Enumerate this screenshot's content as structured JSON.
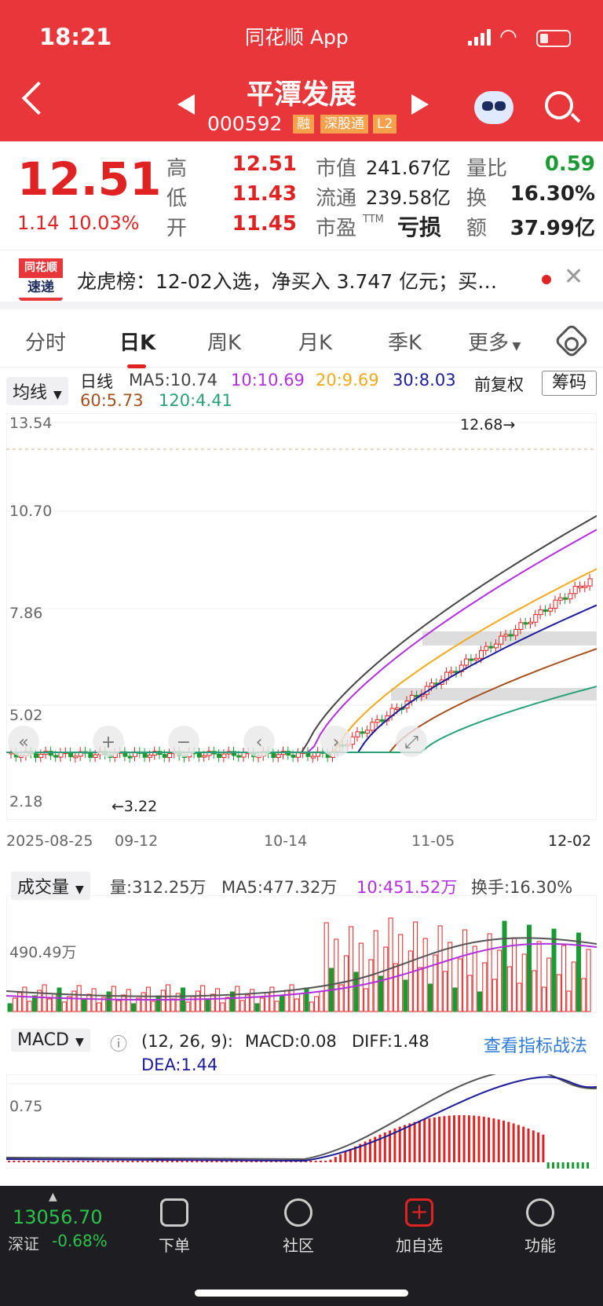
{
  "status_bar": {
    "time": "18:21",
    "app": "同花顺 App"
  },
  "header": {
    "stock_name": "平潭发展",
    "code": "000592",
    "tags": [
      "融",
      "深股通",
      "L2"
    ]
  },
  "quote": {
    "price": "12.51",
    "change": "1.14",
    "change_pct": "10.03%",
    "high_label": "高",
    "high": "12.51",
    "low_label": "低",
    "low": "11.43",
    "open_label": "开",
    "open": "11.45",
    "mktcap_label": "市值",
    "mktcap": "241.67亿",
    "float_label": "流通",
    "float": "239.58亿",
    "pe_label": "市盈",
    "pe_sup": "TTM",
    "pe": "亏损",
    "vr_label": "量比",
    "vr": "0.59",
    "turn_label": "换",
    "turn": "16.30%",
    "amt_label": "额",
    "amt": "37.99亿"
  },
  "news": {
    "logo_top": "同花顺",
    "logo_bottom": "速递",
    "text": "龙虎榜：12-02入选，净买入 3.747 亿元；买…"
  },
  "tabs": [
    "分时",
    "日K",
    "周K",
    "月K",
    "季K",
    "更多"
  ],
  "active_tab": 1,
  "kline_legend": {
    "indicator": "均线",
    "period": "日线",
    "ma5": "MA5:10.74",
    "ma10": "10:10.69",
    "ma20": "20:9.69",
    "ma30": "30:8.03",
    "ma60": "60:5.73",
    "ma120": "120:4.41",
    "adjust": "前复权",
    "chips": "筹码"
  },
  "kline_axis": {
    "y_ticks": [
      "13.54",
      "10.70",
      "7.86",
      "5.02",
      "2.18"
    ],
    "x_ticks": [
      "2025-08-25",
      "09-12",
      "10-14",
      "11-05",
      "12-02"
    ],
    "max_label": "12.68→",
    "min_label": "←3.22"
  },
  "volume_legend": {
    "indicator": "成交量",
    "vol": "量:312.25万",
    "ma5": "MA5:477.32万",
    "ma10": "10:451.52万",
    "turnover": "换手:16.30%",
    "y_tick": "490.49万"
  },
  "macd_legend": {
    "indicator": "MACD",
    "params": "(12, 26, 9):",
    "macd": "MACD:0.08",
    "diff": "DIFF:1.48",
    "dea": "DEA:1.44",
    "link": "查看指标战法",
    "y_tick": "0.75"
  },
  "nav": {
    "index_value": "13056.70",
    "index_name": "深证",
    "index_change": "-0.68%",
    "items": [
      "下单",
      "社区",
      "加自选",
      "功能"
    ]
  },
  "colors": {
    "up": "#e02222",
    "down": "#1a9a32",
    "header_bg": "#e8363a",
    "ma5": "#444444",
    "ma10": "#b22fe0",
    "ma20": "#f2a91b",
    "ma30": "#1c1c9a",
    "ma60": "#a4501f",
    "ma120": "#2aa078"
  }
}
